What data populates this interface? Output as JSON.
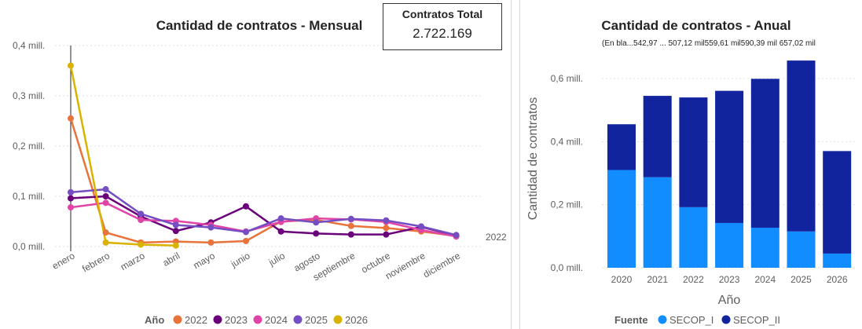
{
  "kpi": {
    "title": "Contratos Total",
    "value": "2.722.169"
  },
  "chart_data": [
    {
      "type": "line",
      "title": "Cantidad de contratos - Mensual",
      "categories": [
        "enero",
        "febrero",
        "marzo",
        "abril",
        "mayo",
        "junio",
        "julio",
        "agosto",
        "septiembre",
        "octubre",
        "noviembre",
        "diciembre"
      ],
      "y_ticks": [
        "0,0 mill.",
        "0,1 mill.",
        "0,2 mill.",
        "0,3 mill.",
        "0,4 mill."
      ],
      "ylim": [
        0,
        0.4
      ],
      "grid": true,
      "legend": {
        "title": "Año",
        "position": "bottom"
      },
      "series": [
        {
          "name": "2022",
          "color": "#e8743b",
          "values": [
            0.255,
            0.028,
            0.008,
            0.01,
            0.008,
            0.011,
            0.05,
            0.053,
            0.041,
            0.037,
            0.03,
            0.021
          ]
        },
        {
          "name": "2023",
          "color": "#6b007b",
          "values": [
            0.096,
            0.1,
            0.06,
            0.031,
            0.048,
            0.08,
            0.03,
            0.026,
            0.024,
            0.024,
            0.039,
            0.022
          ]
        },
        {
          "name": "2024",
          "color": "#e044a7",
          "values": [
            0.078,
            0.087,
            0.053,
            0.051,
            0.043,
            0.03,
            0.049,
            0.056,
            0.054,
            0.049,
            0.033,
            0.02
          ]
        },
        {
          "name": "2025",
          "color": "#744ec2",
          "values": [
            0.108,
            0.114,
            0.065,
            0.043,
            0.038,
            0.029,
            0.056,
            0.048,
            0.055,
            0.052,
            0.04,
            0.023
          ]
        },
        {
          "name": "2026",
          "color": "#d9b300",
          "values": [
            0.36,
            0.008,
            0.004,
            0.002,
            null,
            null,
            null,
            null,
            null,
            null,
            null,
            null
          ]
        }
      ],
      "end_label": "2022"
    },
    {
      "type": "bar",
      "stacked": true,
      "title": "Cantidad de contratos - Anual",
      "subtitle": "(En bla...542,97 ... 507,12 mil559,61 mil590,39 mil  657,02 mil",
      "categories": [
        "2020",
        "2021",
        "2022",
        "2023",
        "2024",
        "2025",
        "2026"
      ],
      "xlabel": "Año",
      "ylabel": "Cantidad de contratos",
      "y_ticks": [
        "0,0 mill.",
        "0,2 mill.",
        "0,4 mill.",
        "0,6 mill."
      ],
      "ylim": [
        0,
        0.65
      ],
      "grid": true,
      "legend": {
        "title": "Fuente",
        "position": "bottom"
      },
      "series": [
        {
          "name": "SECOP_I",
          "color": "#118dff",
          "values": [
            0.31,
            0.287,
            0.192,
            0.142,
            0.127,
            0.115,
            0.045
          ]
        },
        {
          "name": "SECOP_II",
          "color": "#12239e",
          "values": [
            0.145,
            0.258,
            0.348,
            0.419,
            0.472,
            0.542,
            0.325
          ]
        }
      ]
    }
  ]
}
